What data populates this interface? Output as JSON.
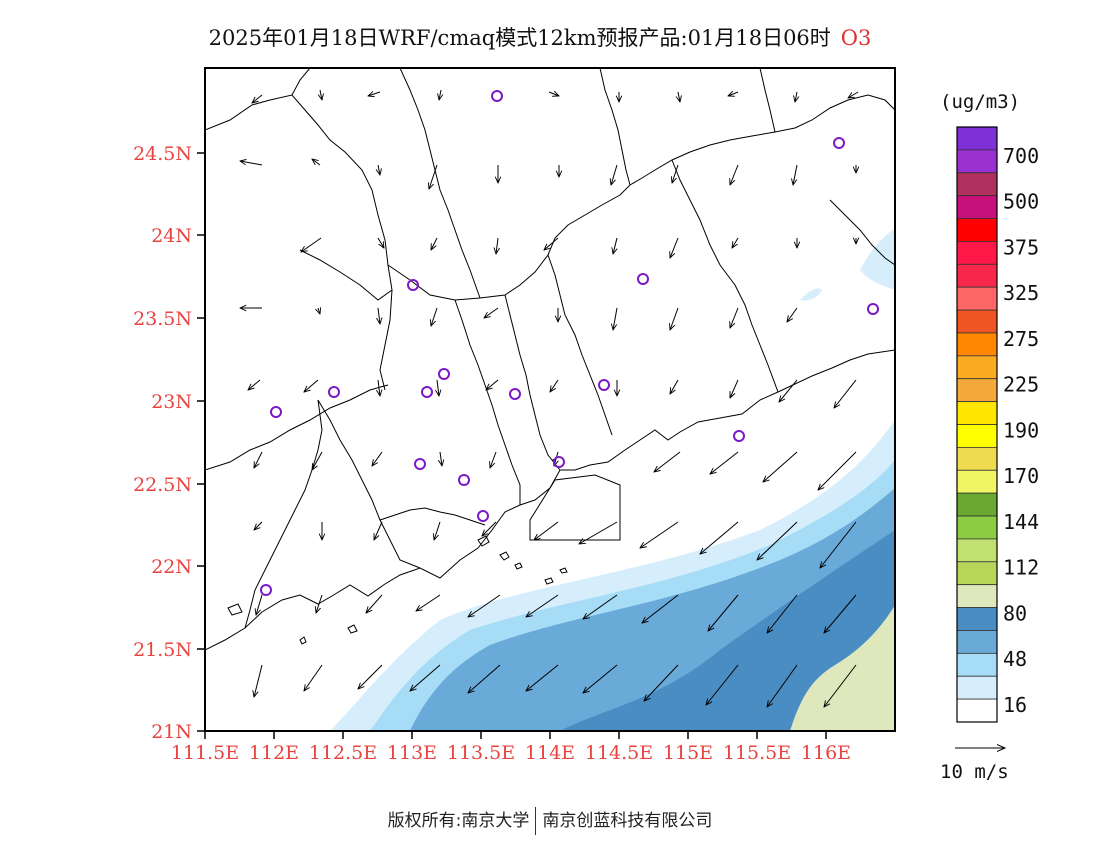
{
  "title": {
    "main": "2025年01月18日WRF/cmaq模式12km预报产品:01月18日06时",
    "species": "O3"
  },
  "footer": {
    "left": "版权所有:南京大学",
    "right": "南京创蓝科技有限公司"
  },
  "axes": {
    "lat_ticks": [
      "24.5N",
      "24N",
      "23.5N",
      "23N",
      "22.5N",
      "22N",
      "21.5N",
      "21N"
    ],
    "lon_ticks": [
      "111.5E",
      "112E",
      "112.5E",
      "113E",
      "113.5E",
      "114E",
      "114.5E",
      "115E",
      "115.5E",
      "116E"
    ]
  },
  "colorbar": {
    "unit": "(ug/m3)",
    "labels": [
      "700",
      "500",
      "375",
      "325",
      "275",
      "225",
      "190",
      "170",
      "144",
      "112",
      "80",
      "48",
      "16"
    ],
    "colors": [
      "#7f2fd6",
      "#9b30d0",
      "#b0305e",
      "#c8107a",
      "#ff0000",
      "#ff1848",
      "#f8284a",
      "#ff6666",
      "#ee5522",
      "#ff8800",
      "#f9ab22",
      "#f5a93a",
      "#ffe600",
      "#ffff00",
      "#f0dc50",
      "#f0f566",
      "#6aa832",
      "#8ccc44",
      "#c0e070",
      "#b8d65a",
      "#dfe8bc",
      "#4a8dc3",
      "#6aaad9",
      "#a6dcf6",
      "#d6eefb",
      "#ffffff"
    ]
  },
  "scale": {
    "label": "10 m/s"
  },
  "site_color": "#7b19c8",
  "coast_color": "#000000"
}
